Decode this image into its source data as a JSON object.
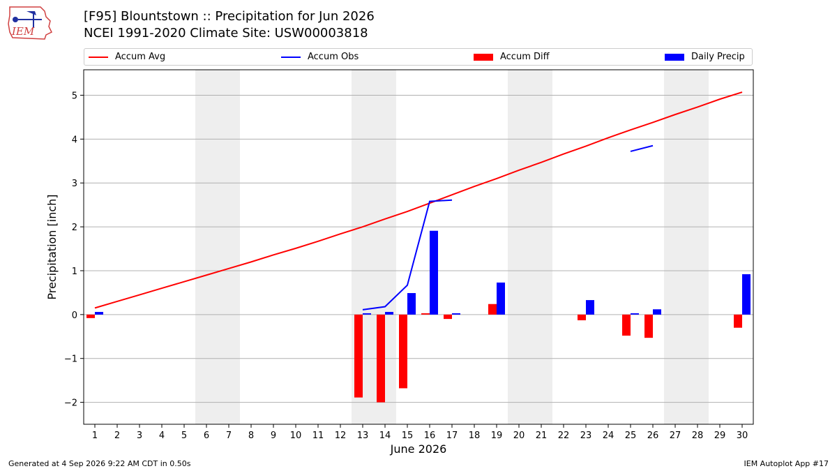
{
  "logo_text": "IEM",
  "title_line1": "[F95] Blountstown :: Precipitation for Jun 2026",
  "title_line2": "NCEI 1991-2020 Climate Site: USW00003818",
  "legend": {
    "accum_avg": "Accum Avg",
    "accum_obs": "Accum Obs",
    "accum_diff": "Accum Diff",
    "daily_precip": "Daily Precip"
  },
  "colors": {
    "avg": "#ff0000",
    "obs": "#0000ff",
    "diff": "#ff0000",
    "daily": "#0000ff",
    "weekend": "#eeeeee",
    "grid": "#b0b0b0"
  },
  "footer_left": "Generated at 4 Sep 2026 9:22 AM CDT in 0.50s",
  "footer_right": "IEM Autoplot App #17",
  "chart_data": {
    "type": "bar",
    "xlabel": "June 2026",
    "ylabel": "Precipitation [inch]",
    "xlim": [
      0.5,
      30.5
    ],
    "ylim": [
      -2.5,
      5.58
    ],
    "yticks": [
      -2,
      -1,
      0,
      1,
      2,
      3,
      4,
      5
    ],
    "ytick_labels": [
      "−2",
      "−1",
      "0",
      "1",
      "2",
      "3",
      "4",
      "5"
    ],
    "xticks": [
      1,
      2,
      3,
      4,
      5,
      6,
      7,
      8,
      9,
      10,
      11,
      12,
      13,
      14,
      15,
      16,
      17,
      18,
      19,
      20,
      21,
      22,
      23,
      24,
      25,
      26,
      27,
      28,
      29,
      30
    ],
    "grid": "horizontal",
    "weekend_spans": [
      [
        5.5,
        7.5
      ],
      [
        12.5,
        14.5
      ],
      [
        19.5,
        21.5
      ],
      [
        26.5,
        28.5
      ]
    ],
    "accum_avg": {
      "name": "Accum Avg",
      "x": [
        1,
        2,
        3,
        4,
        5,
        6,
        7,
        8,
        9,
        10,
        11,
        12,
        13,
        14,
        15,
        16,
        17,
        18,
        19,
        20,
        21,
        22,
        23,
        24,
        25,
        26,
        27,
        28,
        29,
        30
      ],
      "y": [
        0.15,
        0.3,
        0.45,
        0.6,
        0.75,
        0.9,
        1.05,
        1.2,
        1.36,
        1.51,
        1.67,
        1.84,
        2.0,
        2.18,
        2.35,
        2.54,
        2.73,
        2.92,
        3.1,
        3.29,
        3.47,
        3.66,
        3.84,
        4.03,
        4.21,
        4.38,
        4.56,
        4.73,
        4.91,
        5.07
      ]
    },
    "accum_obs": {
      "name": "Accum Obs",
      "segments": [
        {
          "x": [
            13,
            14,
            15,
            16,
            17
          ],
          "y": [
            0.11,
            0.18,
            0.67,
            2.58,
            2.61
          ]
        },
        {
          "x": [
            25,
            26
          ],
          "y": [
            3.72,
            3.85
          ]
        }
      ]
    },
    "accum_diff": {
      "name": "Accum Diff",
      "x": [
        1,
        13,
        14,
        15,
        16,
        17,
        19,
        23,
        25,
        26,
        30
      ],
      "values": [
        -0.08,
        -1.89,
        -2.0,
        -1.68,
        0.03,
        -0.1,
        0.24,
        -0.13,
        -0.48,
        -0.53,
        -0.3
      ]
    },
    "daily_precip": {
      "name": "Daily Precip",
      "x": [
        1,
        13,
        14,
        15,
        16,
        17,
        19,
        23,
        25,
        26,
        30
      ],
      "values": [
        0.06,
        0.03,
        0.06,
        0.49,
        1.91,
        0.03,
        0.73,
        0.33,
        0.03,
        0.12,
        0.92
      ]
    }
  }
}
